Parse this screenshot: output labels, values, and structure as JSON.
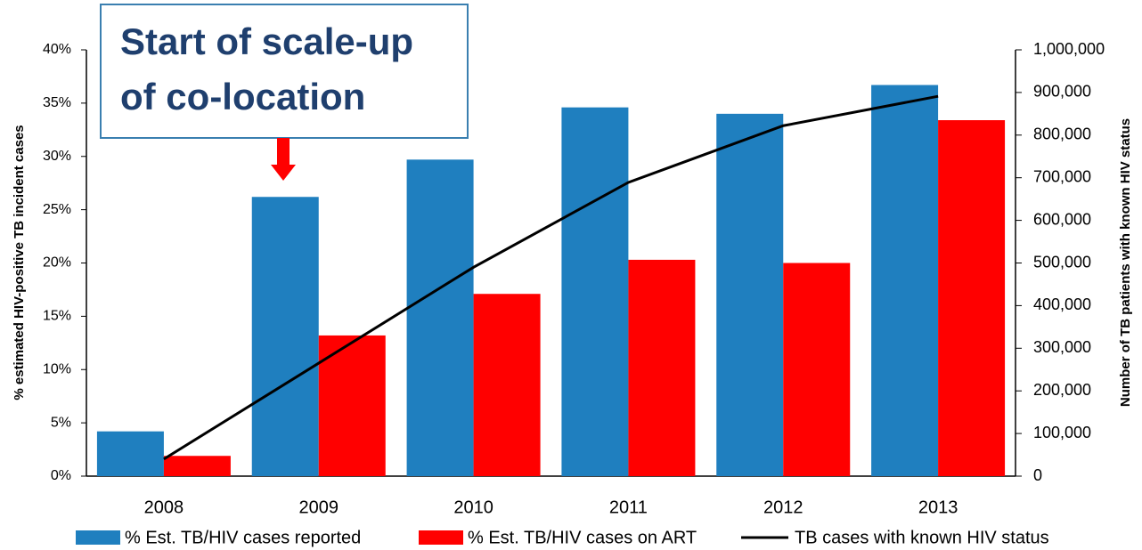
{
  "chart_data": {
    "type": "bar",
    "annotation": {
      "lines": [
        "Start of scale-up",
        "of co-location"
      ]
    },
    "ylabel": "% estimated HIV-positive TB incident cases",
    "y2label": "Number of TB patients with known HIV status",
    "categories": [
      "2008",
      "2009",
      "2010",
      "2011",
      "2012",
      "2013"
    ],
    "series": [
      {
        "name": "% Est. TB/HIV cases reported",
        "type": "bar",
        "color": "#1f7fbf",
        "values": [
          4.2,
          26.2,
          29.7,
          34.6,
          34.0,
          36.7
        ]
      },
      {
        "name": "% Est. TB/HIV cases on ART",
        "type": "bar",
        "color": "#ff0000",
        "values": [
          1.9,
          13.2,
          17.1,
          20.3,
          20.0,
          33.4
        ]
      },
      {
        "name": "TB cases with known HIV status",
        "type": "line",
        "axis": "y2",
        "color": "#000000",
        "values": [
          40000,
          265000,
          490000,
          689000,
          822000,
          891000
        ]
      }
    ],
    "ylim": [
      0,
      40
    ],
    "yticks": [
      {
        "value": 0,
        "label": "0%"
      },
      {
        "value": 5,
        "label": "5%"
      },
      {
        "value": 10,
        "label": "10%"
      },
      {
        "value": 15,
        "label": "15%"
      },
      {
        "value": 20,
        "label": "20%"
      },
      {
        "value": 25,
        "label": "25%"
      },
      {
        "value": 30,
        "label": "30%"
      },
      {
        "value": 35,
        "label": "35%"
      },
      {
        "value": 40,
        "label": "40%"
      }
    ],
    "y2lim": [
      0,
      1000000
    ],
    "y2ticks": [
      0,
      {
        "value": 100000,
        "label": "100,000"
      },
      {
        "value": 200000,
        "label": "200,000"
      },
      {
        "value": 300000,
        "label": "300,000"
      },
      {
        "value": 400000,
        "label": "400,000"
      },
      {
        "value": 500000,
        "label": "500,000"
      },
      {
        "value": 600000,
        "label": "600,000"
      },
      {
        "value": 700000,
        "label": "700,000"
      },
      {
        "value": 800000,
        "label": "800,000"
      },
      {
        "value": 900000,
        "label": "900,000"
      },
      {
        "value": 1000000,
        "label": "1,000,000"
      }
    ],
    "grid": false
  }
}
